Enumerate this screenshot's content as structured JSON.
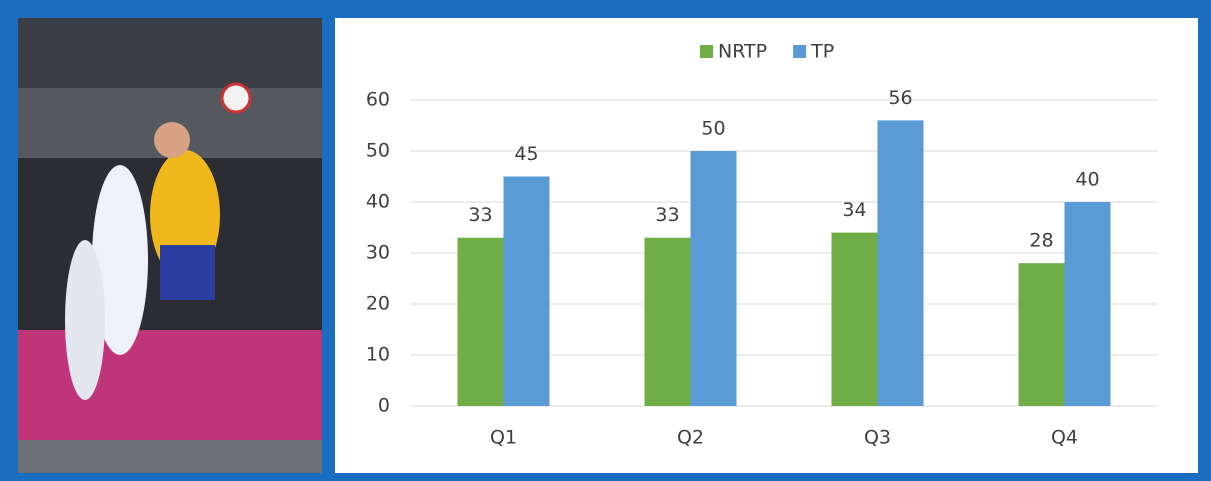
{
  "chart_data": {
    "type": "bar",
    "categories": [
      "Q1",
      "Q2",
      "Q3",
      "Q4"
    ],
    "series": [
      {
        "name": "NRTP",
        "color": "#70ad47",
        "values": [
          33,
          33,
          34,
          28
        ]
      },
      {
        "name": "TP",
        "color": "#5b9bd5",
        "values": [
          45,
          50,
          56,
          40
        ]
      }
    ],
    "ylim": [
      0,
      60
    ],
    "yticks": [
      0,
      10,
      20,
      30,
      40,
      50,
      60
    ],
    "grid": true,
    "legend": "top",
    "data_labels": true
  }
}
